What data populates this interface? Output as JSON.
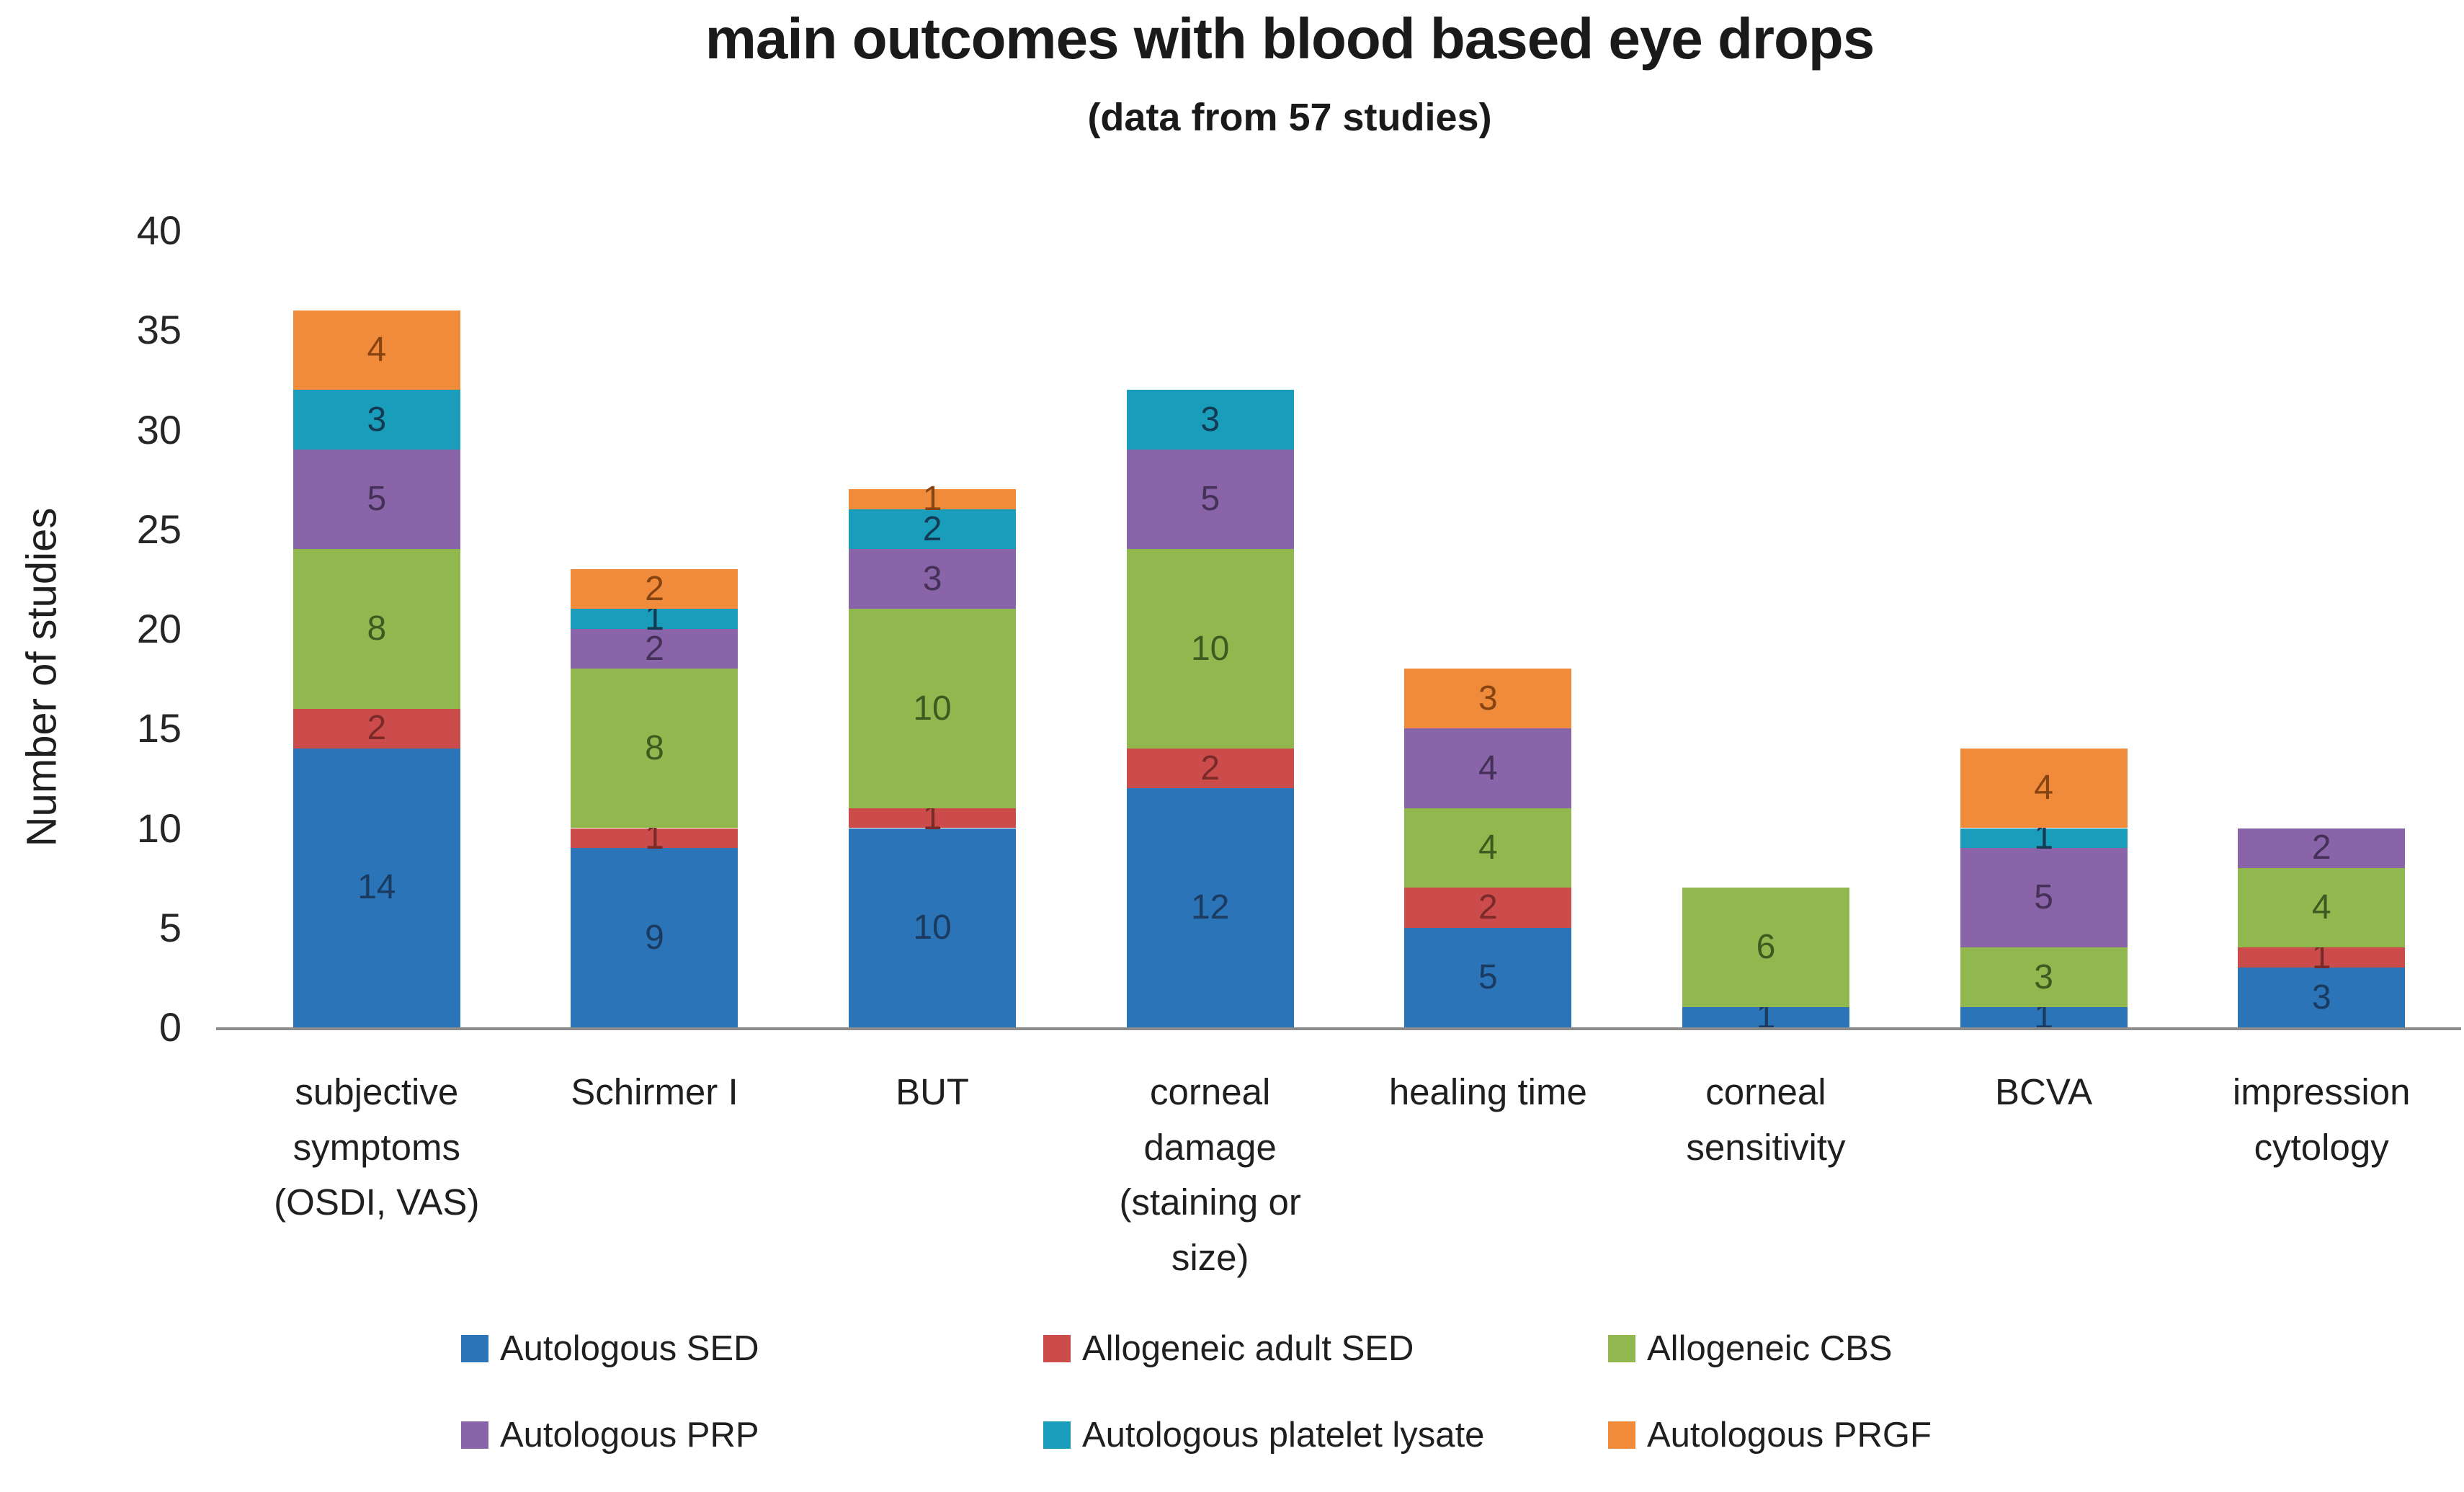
{
  "chart_data": {
    "type": "bar",
    "stacked": true,
    "title": "main outcomes with blood based eye drops",
    "subtitle": "(data from 57 studies)",
    "ylabel": "Number of studies",
    "xlabel": "",
    "ylim": [
      0,
      40
    ],
    "yticks": [
      0,
      5,
      10,
      15,
      20,
      25,
      30,
      35,
      40
    ],
    "grid": false,
    "legend_position": "bottom",
    "axis_color": "#8c8c8c",
    "categories": [
      "subjective symptoms (OSDI, VAS)",
      "Schirmer I",
      "BUT",
      "corneal damage (staining or size)",
      "healing time",
      "corneal sensitivity",
      "BCVA",
      "impression cytology"
    ],
    "category_totals": [
      36,
      23,
      27,
      32,
      18,
      7,
      14,
      10
    ],
    "series": [
      {
        "name": "Autologous SED",
        "color": "#2b74b8",
        "label_color": "#1b3a60",
        "values": [
          14,
          9,
          10,
          12,
          5,
          1,
          1,
          3
        ]
      },
      {
        "name": "Allogeneic adult SED",
        "color": "#cc4c4c",
        "label_color": "#7a2a28",
        "values": [
          2,
          1,
          1,
          2,
          2,
          0,
          0,
          1
        ]
      },
      {
        "name": "Allogeneic CBS",
        "color": "#90b84e",
        "label_color": "#3e5a20",
        "values": [
          8,
          8,
          10,
          10,
          4,
          6,
          3,
          4
        ]
      },
      {
        "name": "Autologous PRP",
        "color": "#8964a8",
        "label_color": "#453157",
        "values": [
          5,
          2,
          3,
          5,
          4,
          0,
          5,
          2
        ]
      },
      {
        "name": "Autologous platelet lysate",
        "color": "#1a9dbb",
        "label_color": "#133a52",
        "values": [
          3,
          1,
          2,
          3,
          0,
          0,
          1,
          0
        ]
      },
      {
        "name": "Autologous PRGF",
        "color": "#f08b3c",
        "label_color": "#874310",
        "values": [
          4,
          2,
          1,
          0,
          3,
          0,
          4,
          0
        ]
      }
    ],
    "legend_rows": [
      [
        0,
        1,
        2
      ],
      [
        3,
        4,
        5
      ]
    ]
  }
}
